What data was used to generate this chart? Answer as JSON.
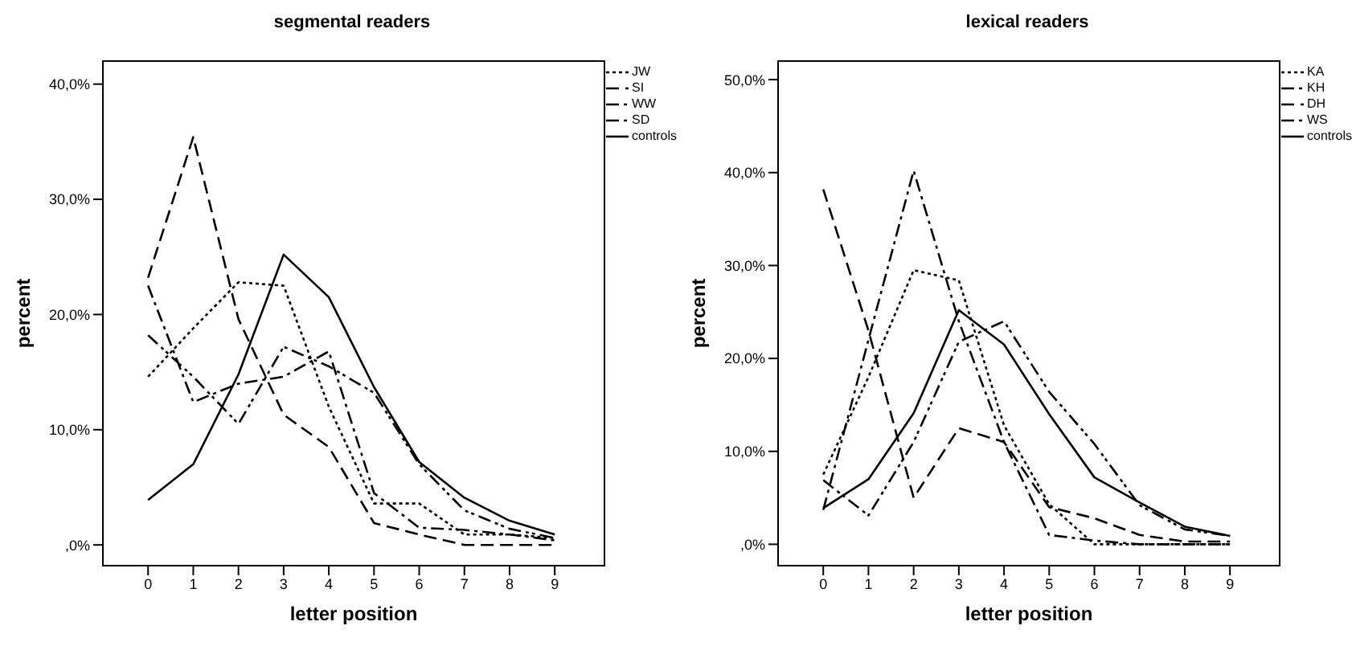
{
  "chart_data": [
    {
      "type": "line",
      "title": "segmental readers",
      "xlabel": "letter position",
      "ylabel": "percent",
      "x": [
        0,
        1,
        2,
        3,
        4,
        5,
        6,
        7,
        8,
        9
      ],
      "xlim": [
        -1,
        10.1
      ],
      "xticks": [
        0,
        1,
        2,
        3,
        4,
        5,
        6,
        7,
        8,
        9
      ],
      "ylim": [
        -1.8,
        42
      ],
      "yticks": [
        {
          "value": 0,
          "label": ",0%"
        },
        {
          "value": 10,
          "label": "10,0%"
        },
        {
          "value": 20,
          "label": "20,0%"
        },
        {
          "value": 30,
          "label": "30,0%"
        },
        {
          "value": 40,
          "label": "40,0%"
        }
      ],
      "grid": false,
      "legend": "right",
      "marker": "none",
      "series": [
        {
          "name": "JW",
          "color": "#000000",
          "line_style": "dotted",
          "values": [
            14.6,
            18.8,
            22.8,
            22.5,
            12.0,
            3.6,
            3.6,
            0.9,
            0.9,
            0.6
          ]
        },
        {
          "name": "SI",
          "color": "#000000",
          "line_style": "dashed",
          "values": [
            23.2,
            35.4,
            19.6,
            11.3,
            8.5,
            1.9,
            0.9,
            0,
            0,
            0
          ]
        },
        {
          "name": "WW",
          "color": "#000000",
          "line_style": "dashdotdot",
          "values": [
            18.2,
            14.6,
            10.5,
            17.2,
            15.5,
            13.2,
            7.0,
            3.0,
            1.4,
            0.6
          ]
        },
        {
          "name": "SD",
          "color": "#000000",
          "line_style": "dashdot",
          "values": [
            22.5,
            12.4,
            14.0,
            14.6,
            16.8,
            4.5,
            1.5,
            1.3,
            0.9,
            0.4
          ]
        },
        {
          "name": "controls",
          "color": "#000000",
          "line_style": "solid",
          "values": [
            3.9,
            7.0,
            14.8,
            25.2,
            21.5,
            13.7,
            7.2,
            4.1,
            2.1,
            0.9
          ]
        }
      ]
    },
    {
      "type": "line",
      "title": "lexical readers",
      "xlabel": "letter position",
      "ylabel": "percent",
      "x": [
        0,
        1,
        2,
        3,
        4,
        5,
        6,
        7,
        8,
        9
      ],
      "xlim": [
        -1,
        10.1
      ],
      "xticks": [
        0,
        1,
        2,
        3,
        4,
        5,
        6,
        7,
        8,
        9
      ],
      "ylim": [
        -2.3,
        52
      ],
      "yticks": [
        {
          "value": 0,
          "label": ",0%"
        },
        {
          "value": 10,
          "label": "10,0%"
        },
        {
          "value": 20,
          "label": "20,0%"
        },
        {
          "value": 30,
          "label": "30,0%"
        },
        {
          "value": 40,
          "label": "40,0%"
        },
        {
          "value": 50,
          "label": "50,0%"
        }
      ],
      "grid": false,
      "legend": "right",
      "marker": "none",
      "series": [
        {
          "name": "KA",
          "color": "#000000",
          "line_style": "dotted",
          "values": [
            7.5,
            18.0,
            29.5,
            28.4,
            12.8,
            4.3,
            0,
            0,
            0,
            0
          ]
        },
        {
          "name": "KH",
          "color": "#000000",
          "line_style": "dashdotdot",
          "values": [
            6.9,
            3.1,
            11.0,
            21.8,
            24.0,
            16.4,
            10.8,
            4.2,
            1.6,
            0.9
          ]
        },
        {
          "name": "DH",
          "color": "#000000",
          "line_style": "dashed",
          "values": [
            38.2,
            23.0,
            5.0,
            12.5,
            11.0,
            4.0,
            2.8,
            1.0,
            0.3,
            0.3
          ]
        },
        {
          "name": "WS",
          "color": "#000000",
          "line_style": "dashdot",
          "values": [
            3.7,
            22.0,
            40.2,
            24.0,
            11.0,
            1.0,
            0.4,
            0,
            0,
            0
          ]
        },
        {
          "name": "controls",
          "color": "#000000",
          "line_style": "solid",
          "values": [
            3.9,
            7.0,
            14.1,
            25.2,
            21.5,
            14.0,
            7.2,
            4.5,
            1.9,
            0.9
          ]
        }
      ]
    }
  ]
}
